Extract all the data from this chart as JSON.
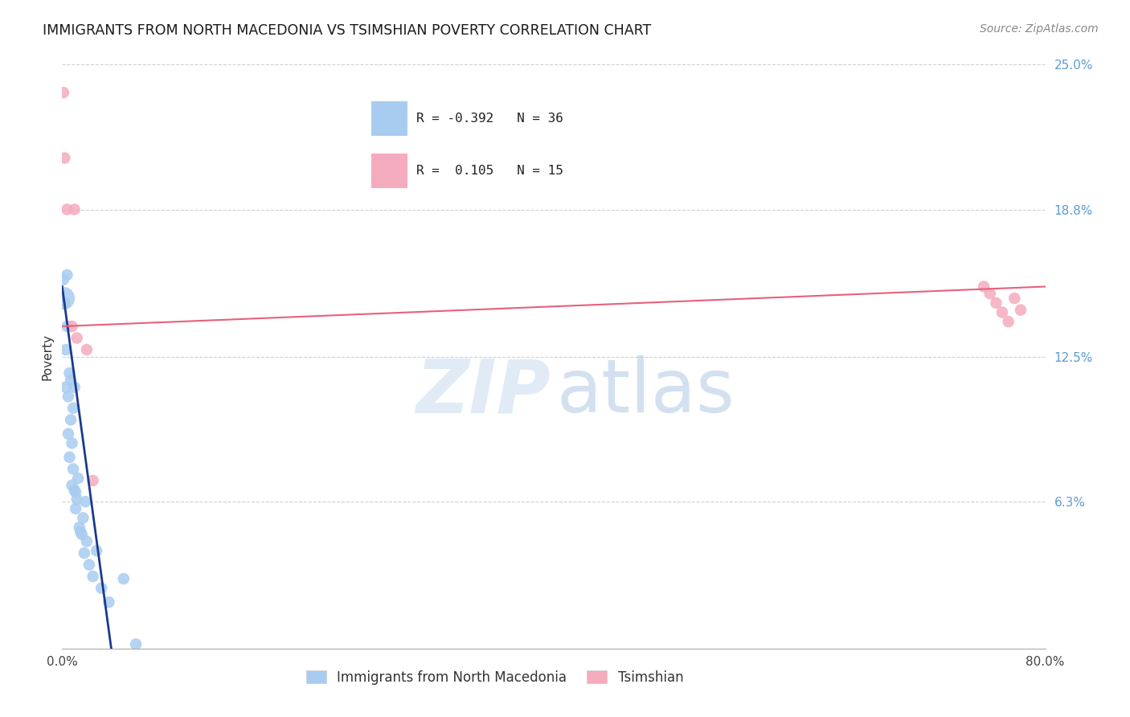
{
  "title": "IMMIGRANTS FROM NORTH MACEDONIA VS TSIMSHIAN POVERTY CORRELATION CHART",
  "source": "Source: ZipAtlas.com",
  "ylabel": "Poverty",
  "xlim": [
    0,
    0.8
  ],
  "ylim": [
    0,
    0.25
  ],
  "xticks": [
    0.0,
    0.8
  ],
  "xticklabels": [
    "0.0%",
    "80.0%"
  ],
  "yticks": [
    0.063,
    0.125,
    0.188,
    0.25
  ],
  "yticklabels": [
    "6.3%",
    "12.5%",
    "18.8%",
    "25.0%"
  ],
  "blue_R": "-0.392",
  "blue_N": 36,
  "pink_R": "0.105",
  "pink_N": 15,
  "blue_scatter_color": "#A8CCF0",
  "pink_scatter_color": "#F5ABBE",
  "blue_line_color": "#1A3A8C",
  "pink_line_color": "#E8607A",
  "background_color": "#FFFFFF",
  "legend_label_blue": "Immigrants from North Macedonia",
  "legend_label_pink": "Tsimshian",
  "blue_x": [
    0.001,
    0.002,
    0.003,
    0.003,
    0.004,
    0.004,
    0.005,
    0.005,
    0.006,
    0.006,
    0.007,
    0.007,
    0.008,
    0.008,
    0.009,
    0.009,
    0.01,
    0.01,
    0.011,
    0.011,
    0.012,
    0.013,
    0.014,
    0.015,
    0.016,
    0.017,
    0.018,
    0.019,
    0.02,
    0.022,
    0.025,
    0.028,
    0.032,
    0.038,
    0.05,
    0.06
  ],
  "blue_y": [
    0.158,
    0.148,
    0.128,
    0.112,
    0.138,
    0.16,
    0.092,
    0.108,
    0.082,
    0.118,
    0.098,
    0.115,
    0.07,
    0.088,
    0.077,
    0.103,
    0.112,
    0.068,
    0.067,
    0.06,
    0.064,
    0.073,
    0.052,
    0.05,
    0.049,
    0.056,
    0.041,
    0.063,
    0.046,
    0.036,
    0.031,
    0.042,
    0.026,
    0.02,
    0.03,
    0.002
  ],
  "blue_large_x": [
    0.001
  ],
  "blue_large_y": [
    0.15
  ],
  "pink_x": [
    0.001,
    0.002,
    0.004,
    0.008,
    0.01,
    0.012,
    0.02,
    0.025,
    0.75,
    0.755,
    0.76,
    0.765,
    0.77,
    0.775,
    0.78
  ],
  "pink_y": [
    0.238,
    0.21,
    0.188,
    0.138,
    0.188,
    0.133,
    0.128,
    0.072,
    0.155,
    0.152,
    0.148,
    0.144,
    0.14,
    0.15,
    0.145
  ],
  "title_fontsize": 12.5,
  "tick_fontsize": 11,
  "source_fontsize": 10,
  "ylabel_fontsize": 11,
  "legend_fontsize": 12,
  "watermark_zip_color": "#C8DCF0",
  "watermark_atlas_color": "#B0C8E4",
  "tick_color_x": "#444444",
  "tick_color_y": "#5B9BD5",
  "grid_color": "#D0D0D0",
  "spine_color": "#AAAAAA"
}
